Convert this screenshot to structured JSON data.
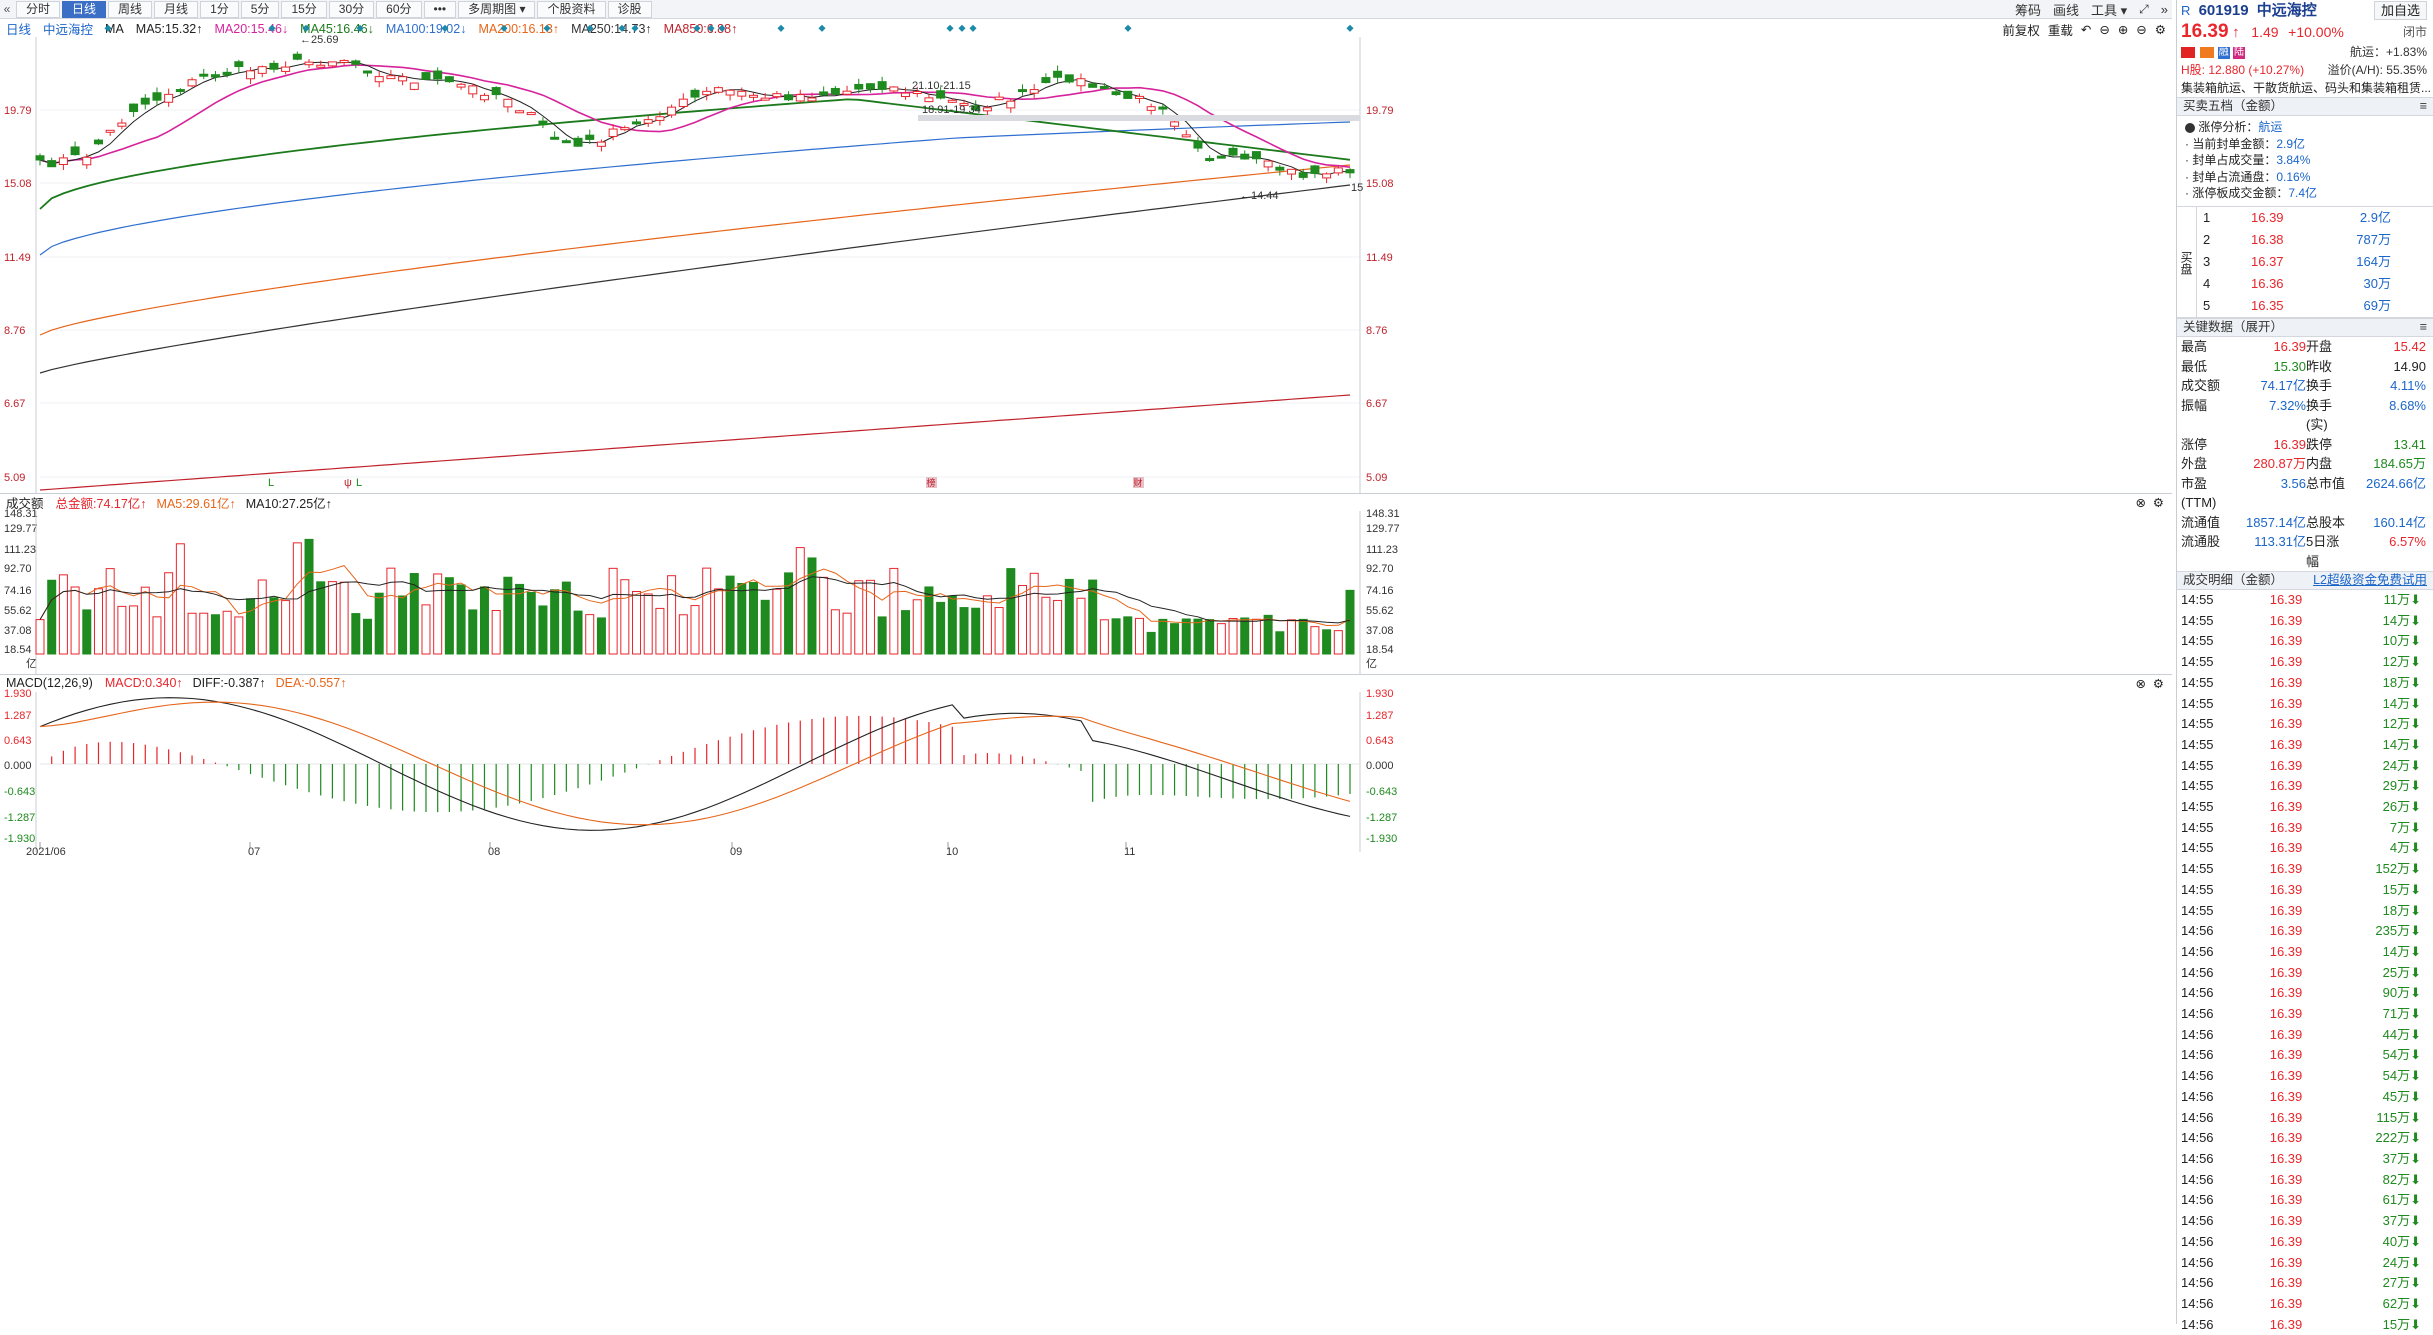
{
  "toolbar": {
    "buttons": [
      "分时",
      "日线",
      "周线",
      "月线",
      "1分",
      "5分",
      "15分",
      "30分",
      "60分",
      "•••",
      "多周期图 ▾",
      "个股资料",
      "诊股"
    ],
    "active": "日线",
    "right": [
      "筹码",
      "画线",
      "工具 ▾"
    ]
  },
  "legend": {
    "period": "日线",
    "name": "中远海控",
    "ma": "MA",
    "items": [
      {
        "text": "MA5:15.32↑",
        "color": "#222222"
      },
      {
        "text": "MA20:15.46↓",
        "color": "#d6239c"
      },
      {
        "text": "MA45:16.46↓",
        "color": "#1c7a1c"
      },
      {
        "text": "MA100:19.02↓",
        "color": "#2f6fd0"
      },
      {
        "text": "MA200:16.13↑",
        "color": "#e6651a"
      },
      {
        "text": "MA250:14.73↑",
        "color": "#333333"
      },
      {
        "text": "MA850:6.88↑",
        "color": "#c0222b"
      }
    ],
    "right": [
      "前复权",
      "重载"
    ]
  },
  "price_axis": [
    "19.79",
    "15.08",
    "11.49",
    "8.76",
    "6.67",
    "5.09"
  ],
  "price_annotations": {
    "high": "25.69",
    "low": "14.44",
    "range1": "21.10-21.15",
    "range2": "18.91-19.34",
    "last": "15"
  },
  "markers": [
    "L",
    "ψ",
    "L",
    "榜",
    "财"
  ],
  "volume": {
    "title": "成交额",
    "items": [
      {
        "text": "总金额:74.17亿↑",
        "color": "#e8262c"
      },
      {
        "text": "MA5:29.61亿↑",
        "color": "#e6651a"
      },
      {
        "text": "MA10:27.25亿↑",
        "color": "#222222"
      }
    ],
    "axis": [
      "148.31",
      "129.77",
      "111.23",
      "92.70",
      "74.16",
      "55.62",
      "37.08",
      "18.54",
      "亿"
    ]
  },
  "macd": {
    "title": "MACD(12,26,9)",
    "items": [
      {
        "text": "MACD:0.340↑",
        "color": "#e8262c"
      },
      {
        "text": "DIFF:-0.387↑",
        "color": "#222222"
      },
      {
        "text": "DEA:-0.557↑",
        "color": "#e6651a"
      }
    ],
    "axis": [
      "1.930",
      "1.287",
      "0.643",
      "0.000",
      "-0.643",
      "-1.287",
      "-1.930"
    ]
  },
  "date_axis": [
    "2021/06",
    "07",
    "08",
    "09",
    "10",
    "11"
  ],
  "sidebar": {
    "market": "R",
    "code": "601919",
    "name": "中远海控",
    "price": "16.39",
    "arrow": "↑",
    "change": "1.49",
    "pct": "+10.00%",
    "close_btn": "闭市",
    "add_btn": "加自选",
    "badges": [
      "融",
      "陆"
    ],
    "sector": "航运：+1.83%",
    "h_share": "H股: 12.880 (+10.27%)",
    "premium": "溢价(A/H): 55.35%",
    "business": "集装箱航运、干散货航运、码头和集装箱租赁...",
    "orderbook_title": "买卖五档（金额）",
    "limit_title": "涨停分析：",
    "limit_sector": "航运",
    "limit_items": [
      {
        "k": "· 当前封单金额：",
        "v": "2.9亿"
      },
      {
        "k": "· 封单占成交量：",
        "v": "3.84%"
      },
      {
        "k": "· 封单占流通盘：",
        "v": "0.16%"
      },
      {
        "k": "· 涨停板成交金额：",
        "v": "7.4亿"
      }
    ],
    "buy_label": "买盘",
    "orderbook": [
      {
        "lvl": "1",
        "price": "16.39",
        "amt": "2.9亿"
      },
      {
        "lvl": "2",
        "price": "16.38",
        "amt": "787万"
      },
      {
        "lvl": "3",
        "price": "16.37",
        "amt": "164万"
      },
      {
        "lvl": "4",
        "price": "16.36",
        "amt": "30万"
      },
      {
        "lvl": "5",
        "price": "16.35",
        "amt": "69万"
      }
    ],
    "key_title": "关键数据（展开）",
    "key_data": [
      [
        "最高",
        "16.39",
        "开盘",
        "15.42"
      ],
      [
        "最低",
        "15.30",
        "昨收",
        "14.90"
      ],
      [
        "成交额",
        "74.17亿",
        "换手",
        "4.11%"
      ],
      [
        "振幅",
        "7.32%",
        "换手(实)",
        "8.68%"
      ],
      [
        "涨停",
        "16.39",
        "跌停",
        "13.41"
      ],
      [
        "外盘",
        "280.87万",
        "内盘",
        "184.65万"
      ],
      [
        "市盈(TTM)",
        "3.56",
        "总市值",
        "2624.66亿"
      ],
      [
        "流通值",
        "1857.14亿",
        "总股本",
        "160.14亿"
      ],
      [
        "流通股",
        "113.31亿",
        "5日涨幅",
        "6.57%"
      ]
    ],
    "ticks_title": "成交明细（金额）",
    "ticks_link": "L2超级资金免费试用",
    "ticks": [
      [
        "14:55",
        "16.39",
        "11万"
      ],
      [
        "14:55",
        "16.39",
        "14万"
      ],
      [
        "14:55",
        "16.39",
        "10万"
      ],
      [
        "14:55",
        "16.39",
        "12万"
      ],
      [
        "14:55",
        "16.39",
        "18万"
      ],
      [
        "14:55",
        "16.39",
        "14万"
      ],
      [
        "14:55",
        "16.39",
        "12万"
      ],
      [
        "14:55",
        "16.39",
        "14万"
      ],
      [
        "14:55",
        "16.39",
        "24万"
      ],
      [
        "14:55",
        "16.39",
        "29万"
      ],
      [
        "14:55",
        "16.39",
        "26万"
      ],
      [
        "14:55",
        "16.39",
        "7万"
      ],
      [
        "14:55",
        "16.39",
        "4万"
      ],
      [
        "14:55",
        "16.39",
        "152万"
      ],
      [
        "14:55",
        "16.39",
        "15万"
      ],
      [
        "14:55",
        "16.39",
        "18万"
      ],
      [
        "14:56",
        "16.39",
        "235万"
      ],
      [
        "14:56",
        "16.39",
        "14万"
      ],
      [
        "14:56",
        "16.39",
        "25万"
      ],
      [
        "14:56",
        "16.39",
        "90万"
      ],
      [
        "14:56",
        "16.39",
        "71万"
      ],
      [
        "14:56",
        "16.39",
        "44万"
      ],
      [
        "14:56",
        "16.39",
        "54万"
      ],
      [
        "14:56",
        "16.39",
        "54万"
      ],
      [
        "14:56",
        "16.39",
        "45万"
      ],
      [
        "14:56",
        "16.39",
        "115万"
      ],
      [
        "14:56",
        "16.39",
        "222万"
      ],
      [
        "14:56",
        "16.39",
        "37万"
      ],
      [
        "14:56",
        "16.39",
        "82万"
      ],
      [
        "14:56",
        "16.39",
        "61万"
      ],
      [
        "14:56",
        "16.39",
        "37万"
      ],
      [
        "14:56",
        "16.39",
        "40万"
      ],
      [
        "14:56",
        "16.39",
        "24万"
      ],
      [
        "14:56",
        "16.39",
        "27万"
      ],
      [
        "14:56",
        "16.39",
        "62万"
      ],
      [
        "14:56",
        "16.39",
        "15万"
      ]
    ]
  }
}
